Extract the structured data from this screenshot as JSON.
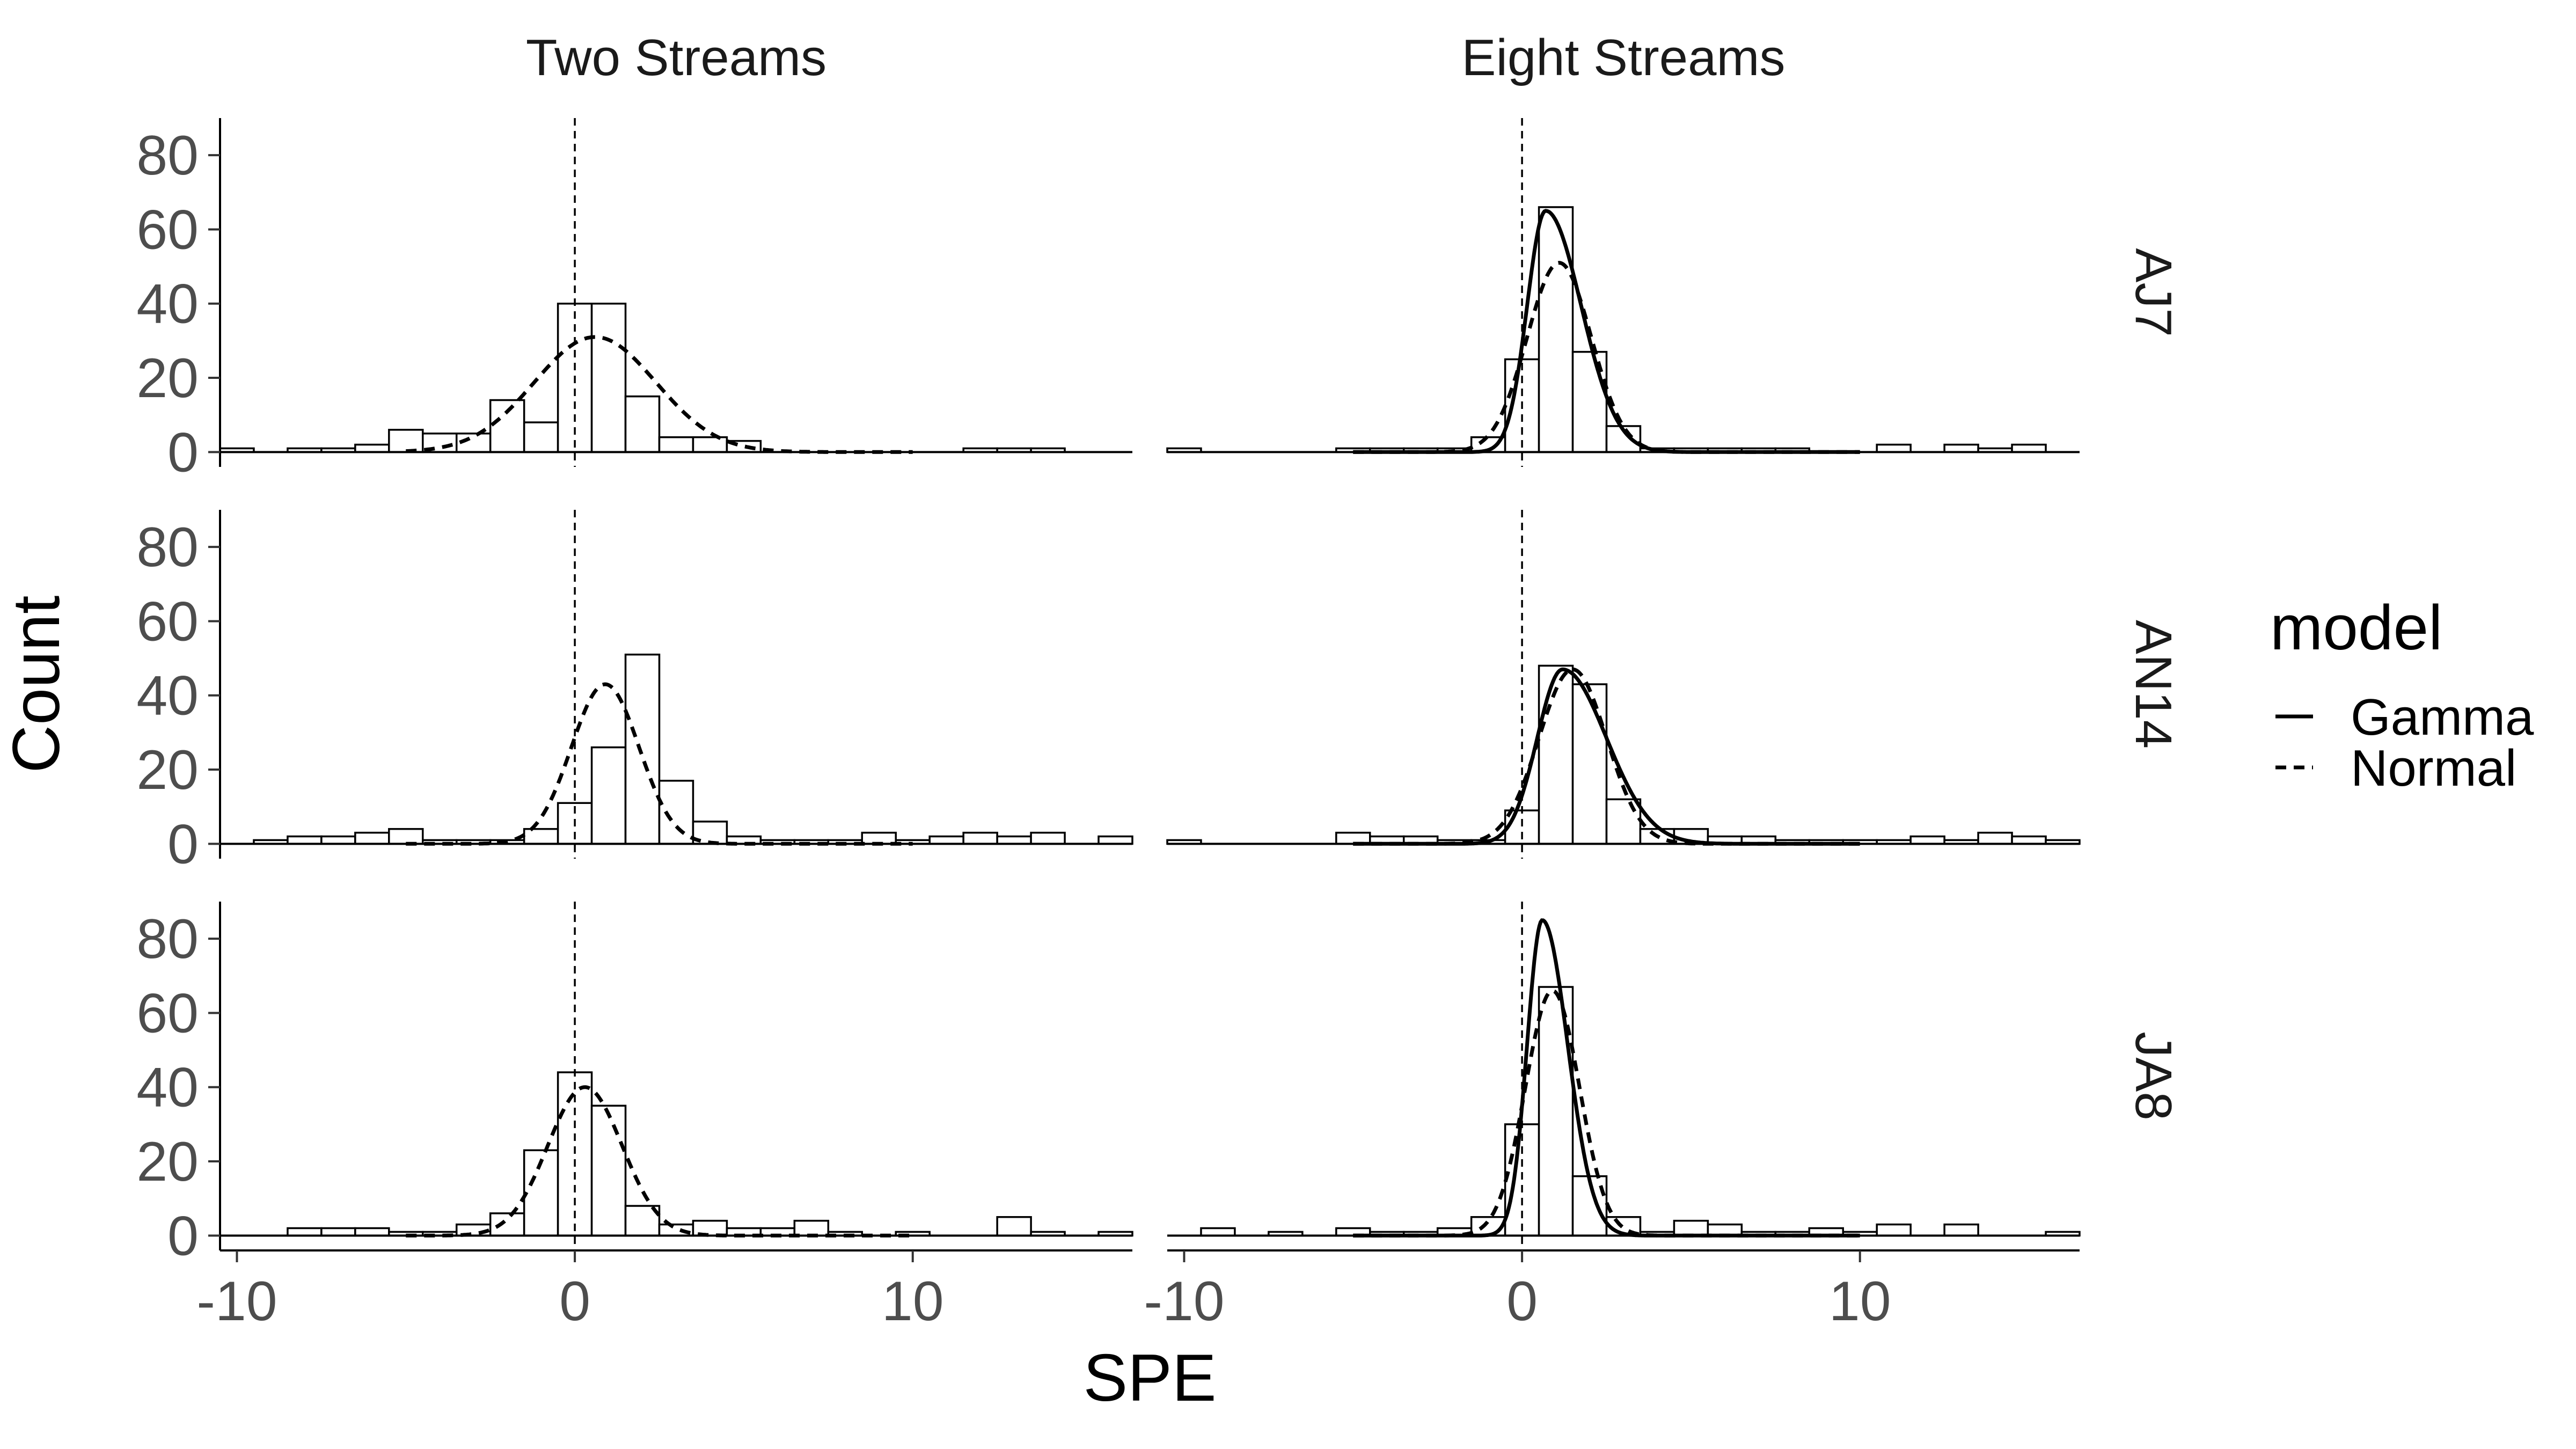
{
  "chart_data": {
    "type": "bar",
    "xlabel": "SPE",
    "ylabel": "Count",
    "xlim": [
      -10.5,
      16.5
    ],
    "ylim": [
      -4,
      90
    ],
    "x_ticks": [
      -10,
      0,
      10
    ],
    "x_tick_labels": [
      "-10",
      "0",
      "10"
    ],
    "y_ticks": [
      0,
      20,
      40,
      60,
      80
    ],
    "y_tick_labels": [
      "0",
      "20",
      "40",
      "60",
      "80"
    ],
    "bin_start": -10.5,
    "bin_width": 1,
    "reference_line_x": 0,
    "grid": false,
    "legend": {
      "title": "model",
      "position": "right",
      "entries": [
        {
          "label": "Gamma",
          "linetype": "solid"
        },
        {
          "label": "Normal",
          "linetype": "dashed"
        }
      ]
    },
    "columns": [
      "Two Streams",
      "Eight Streams"
    ],
    "rows": [
      "AJ7",
      "AN14",
      "JA8"
    ],
    "panels": [
      {
        "row": "AJ7",
        "column": "Two Streams",
        "counts": [
          1,
          0,
          1,
          1,
          2,
          6,
          5,
          5,
          14,
          8,
          40,
          40,
          15,
          4,
          4,
          3,
          0,
          0,
          0,
          0,
          0,
          0,
          1,
          1,
          1,
          0,
          0
        ],
        "normal": {
          "mean": 0.6,
          "sd": 1.8,
          "peak": 31
        }
      },
      {
        "row": "AJ7",
        "column": "Eight Streams",
        "counts": [
          1,
          0,
          0,
          0,
          0,
          1,
          1,
          1,
          1,
          4,
          25,
          66,
          27,
          7,
          1,
          1,
          1,
          1,
          1,
          0,
          0,
          2,
          0,
          2,
          1,
          2,
          0
        ],
        "gamma": {
          "mode": 0.7,
          "peak": 65,
          "sd_left": 0.55,
          "sd_right": 1.05
        },
        "normal": {
          "mean": 1.1,
          "sd": 0.95,
          "peak": 51
        }
      },
      {
        "row": "AN14",
        "column": "Two Streams",
        "counts": [
          0,
          1,
          2,
          2,
          3,
          4,
          1,
          1,
          1,
          4,
          11,
          26,
          51,
          17,
          6,
          2,
          1,
          1,
          1,
          3,
          1,
          2,
          3,
          2,
          3,
          0,
          2,
          1
        ],
        "normal": {
          "mean": 0.9,
          "sd": 1.0,
          "peak": 43
        }
      },
      {
        "row": "AN14",
        "column": "Eight Streams",
        "counts": [
          1,
          0,
          0,
          0,
          0,
          3,
          2,
          2,
          1,
          1,
          9,
          48,
          43,
          12,
          4,
          4,
          2,
          2,
          1,
          1,
          1,
          1,
          2,
          1,
          3,
          2,
          1,
          1
        ],
        "gamma": {
          "mode": 1.2,
          "peak": 47,
          "sd_left": 0.75,
          "sd_right": 1.3
        },
        "normal": {
          "mean": 1.5,
          "sd": 1.0,
          "peak": 47
        }
      },
      {
        "row": "JA8",
        "column": "Two Streams",
        "counts": [
          0,
          0,
          2,
          2,
          2,
          1,
          1,
          3,
          6,
          23,
          44,
          35,
          8,
          3,
          4,
          2,
          2,
          4,
          1,
          0,
          1,
          0,
          0,
          5,
          1,
          0,
          1
        ],
        "normal": {
          "mean": 0.3,
          "sd": 1.1,
          "peak": 40
        }
      },
      {
        "row": "JA8",
        "column": "Eight Streams",
        "counts": [
          0,
          2,
          0,
          1,
          0,
          2,
          1,
          1,
          2,
          5,
          30,
          67,
          16,
          5,
          1,
          4,
          3,
          1,
          1,
          2,
          1,
          3,
          0,
          3,
          0,
          0,
          1
        ],
        "gamma": {
          "mode": 0.6,
          "peak": 85,
          "sd_left": 0.45,
          "sd_right": 0.75
        },
        "normal": {
          "mean": 0.9,
          "sd": 0.8,
          "peak": 66
        }
      }
    ]
  }
}
